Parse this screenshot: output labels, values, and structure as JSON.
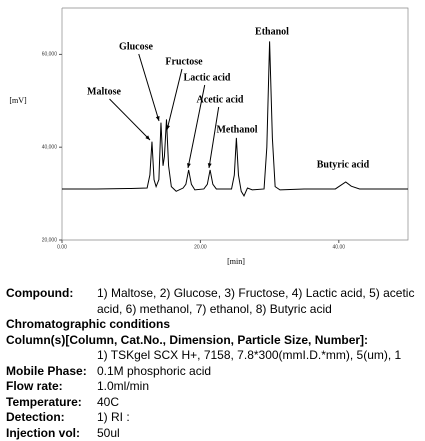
{
  "chart_data": {
    "type": "line",
    "y_label": "[mV]",
    "x_label": "[min]",
    "xlim": [
      0,
      50
    ],
    "xticks": [
      {
        "value": 0,
        "label": "0.00"
      },
      {
        "value": 20,
        "label": "20.00"
      },
      {
        "value": 40,
        "label": "40.00"
      }
    ],
    "ylim": [
      20000,
      70000
    ],
    "yticks": [
      {
        "value": 20000,
        "label": "20,000"
      },
      {
        "value": 40000,
        "label": "40,000"
      },
      {
        "value": 60000,
        "label": "60,000"
      }
    ],
    "color": "#000000",
    "x": [
      0,
      5,
      10,
      12.3,
      12.7,
      13.0,
      13.3,
      13.6,
      14.0,
      14.3,
      14.6,
      14.8,
      15.1,
      15.4,
      15.8,
      16.5,
      17.5,
      17.9,
      18.3,
      18.7,
      19.2,
      20.5,
      21.0,
      21.4,
      21.8,
      22.3,
      24.5,
      24.9,
      25.2,
      25.5,
      25.9,
      26.3,
      26.8,
      27.5,
      29.2,
      29.6,
      30.0,
      30.4,
      30.8,
      31.5,
      35,
      39.5,
      40.2,
      41.0,
      41.8,
      43,
      50
    ],
    "values": [
      31000,
      31000,
      31100,
      31200,
      34000,
      41200,
      33000,
      31500,
      33000,
      45300,
      36000,
      38000,
      46000,
      36000,
      31500,
      30500,
      31200,
      32000,
      35100,
      32000,
      30800,
      31000,
      32000,
      35100,
      32000,
      31000,
      31000,
      34000,
      42000,
      34000,
      30500,
      29500,
      31200,
      30800,
      31000,
      40000,
      62800,
      42000,
      31500,
      30800,
      31000,
      31000,
      31700,
      32500,
      31600,
      31000,
      31000
    ],
    "annotations": [
      "Maltose",
      "Glucose",
      "Fructose",
      "Lactic acid",
      "Acetic acid",
      "Methanol",
      "Ethanol",
      "Butyric acid"
    ]
  },
  "details": {
    "rows": [
      {
        "label": "Compound:",
        "value": "1) Maltose, 2) Glucose, 3) Fructose, 4) Lactic acid, 5) acetic acid, 6) methanol, 7) ethanol, 8) Butyric acid"
      },
      {
        "heading": "Chromatographic conditions"
      },
      {
        "heading": "Column(s)[Column, Cat.No., Dimension, Particle Size, Number]:",
        "value": "1) TSKgel SCX H+, 7158, 7.8*300(mmI.D.*mm), 5(um), 1"
      },
      {
        "label": "Mobile Phase:",
        "value": "0.1M phosphoric acid"
      },
      {
        "label": "Flow rate:",
        "value": "1.0ml/min"
      },
      {
        "label": "Temperature:",
        "value": "40C"
      },
      {
        "label": "Detection:",
        "value": "1) RI :"
      },
      {
        "label": "Injection vol:",
        "value": "50ul"
      }
    ]
  }
}
